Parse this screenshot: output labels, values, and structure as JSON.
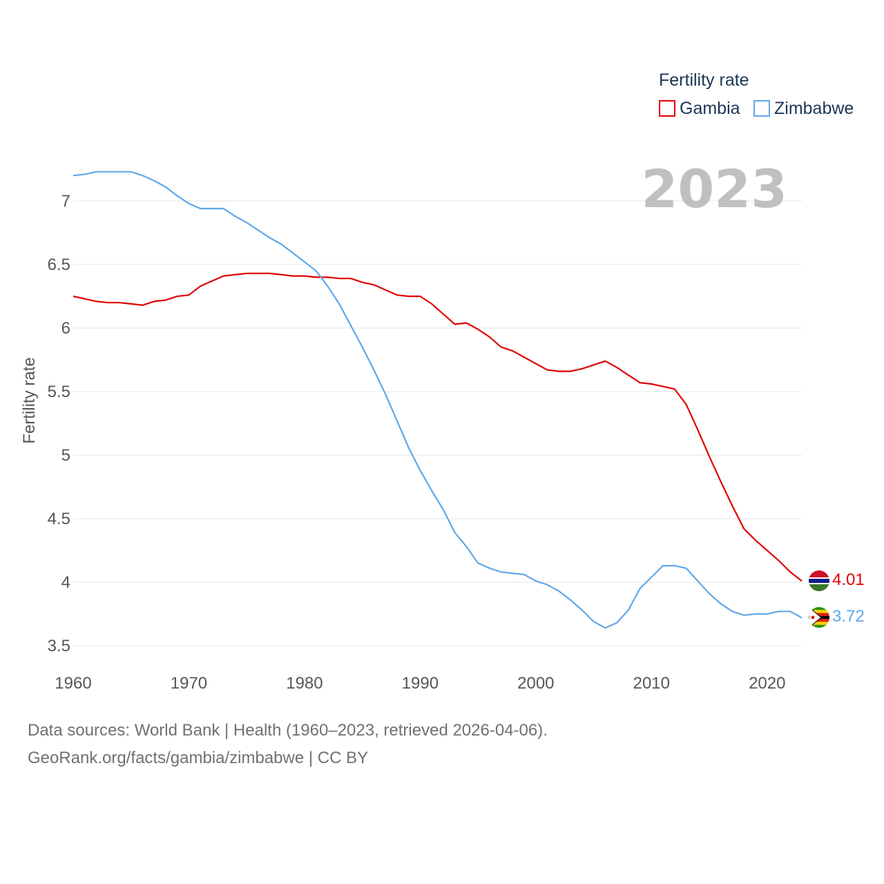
{
  "chart_data": {
    "type": "line",
    "legend_title": "Fertility rate",
    "ylabel": "Fertility rate",
    "xlabel": "",
    "year_display": "2023",
    "xlim": [
      1960,
      2023
    ],
    "ylim": [
      3.5,
      7.25
    ],
    "x_ticks": [
      1960,
      1970,
      1980,
      1990,
      2000,
      2010,
      2020
    ],
    "y_ticks": [
      3.5,
      4,
      4.5,
      5,
      5.5,
      6,
      6.5,
      7
    ],
    "x": [
      1960,
      1961,
      1962,
      1963,
      1964,
      1965,
      1966,
      1967,
      1968,
      1969,
      1970,
      1971,
      1972,
      1973,
      1974,
      1975,
      1976,
      1977,
      1978,
      1979,
      1980,
      1981,
      1982,
      1983,
      1984,
      1985,
      1986,
      1987,
      1988,
      1989,
      1990,
      1991,
      1992,
      1993,
      1994,
      1995,
      1996,
      1997,
      1998,
      1999,
      2000,
      2001,
      2002,
      2003,
      2004,
      2005,
      2006,
      2007,
      2008,
      2009,
      2010,
      2011,
      2012,
      2013,
      2014,
      2015,
      2016,
      2017,
      2018,
      2019,
      2020,
      2021,
      2022,
      2023
    ],
    "series": [
      {
        "name": "Gambia",
        "color": "#e00000",
        "end_label": "4.01",
        "flag": "gambia-flag-icon",
        "values": [
          6.25,
          6.23,
          6.21,
          6.2,
          6.2,
          6.19,
          6.18,
          6.21,
          6.22,
          6.25,
          6.26,
          6.33,
          6.37,
          6.41,
          6.42,
          6.43,
          6.43,
          6.43,
          6.42,
          6.41,
          6.41,
          6.4,
          6.4,
          6.39,
          6.39,
          6.36,
          6.34,
          6.3,
          6.26,
          6.25,
          6.25,
          6.19,
          6.11,
          6.03,
          6.04,
          5.99,
          5.93,
          5.85,
          5.82,
          5.77,
          5.72,
          5.67,
          5.66,
          5.66,
          5.68,
          5.71,
          5.74,
          5.69,
          5.63,
          5.57,
          5.56,
          5.54,
          5.52,
          5.4,
          5.2,
          4.99,
          4.79,
          4.6,
          4.42,
          4.33,
          4.25,
          4.17,
          4.08,
          4.01
        ]
      },
      {
        "name": "Zimbabwe",
        "color": "#5fa8e8",
        "end_label": "3.72",
        "flag": "zimbabwe-flag-icon",
        "values": [
          7.2,
          7.21,
          7.23,
          7.23,
          7.23,
          7.23,
          7.2,
          7.16,
          7.11,
          7.04,
          6.98,
          6.94,
          6.94,
          6.94,
          6.88,
          6.83,
          6.77,
          6.71,
          6.66,
          6.59,
          6.52,
          6.45,
          6.33,
          6.19,
          6.02,
          5.85,
          5.67,
          5.48,
          5.27,
          5.06,
          4.88,
          4.72,
          4.57,
          4.39,
          4.28,
          4.15,
          4.11,
          4.08,
          4.07,
          4.06,
          4.01,
          3.98,
          3.93,
          3.86,
          3.78,
          3.69,
          3.64,
          3.68,
          3.78,
          3.95,
          4.04,
          4.13,
          4.13,
          4.11,
          4.01,
          3.91,
          3.83,
          3.77,
          3.74,
          3.75,
          3.75,
          3.77,
          3.77,
          3.72
        ]
      }
    ]
  },
  "footer": {
    "line1": "Data sources: World Bank | Health (1960–2023, retrieved 2026-04-06).",
    "line2": "GeoRank.org/facts/gambia/zimbabwe | CC BY"
  }
}
